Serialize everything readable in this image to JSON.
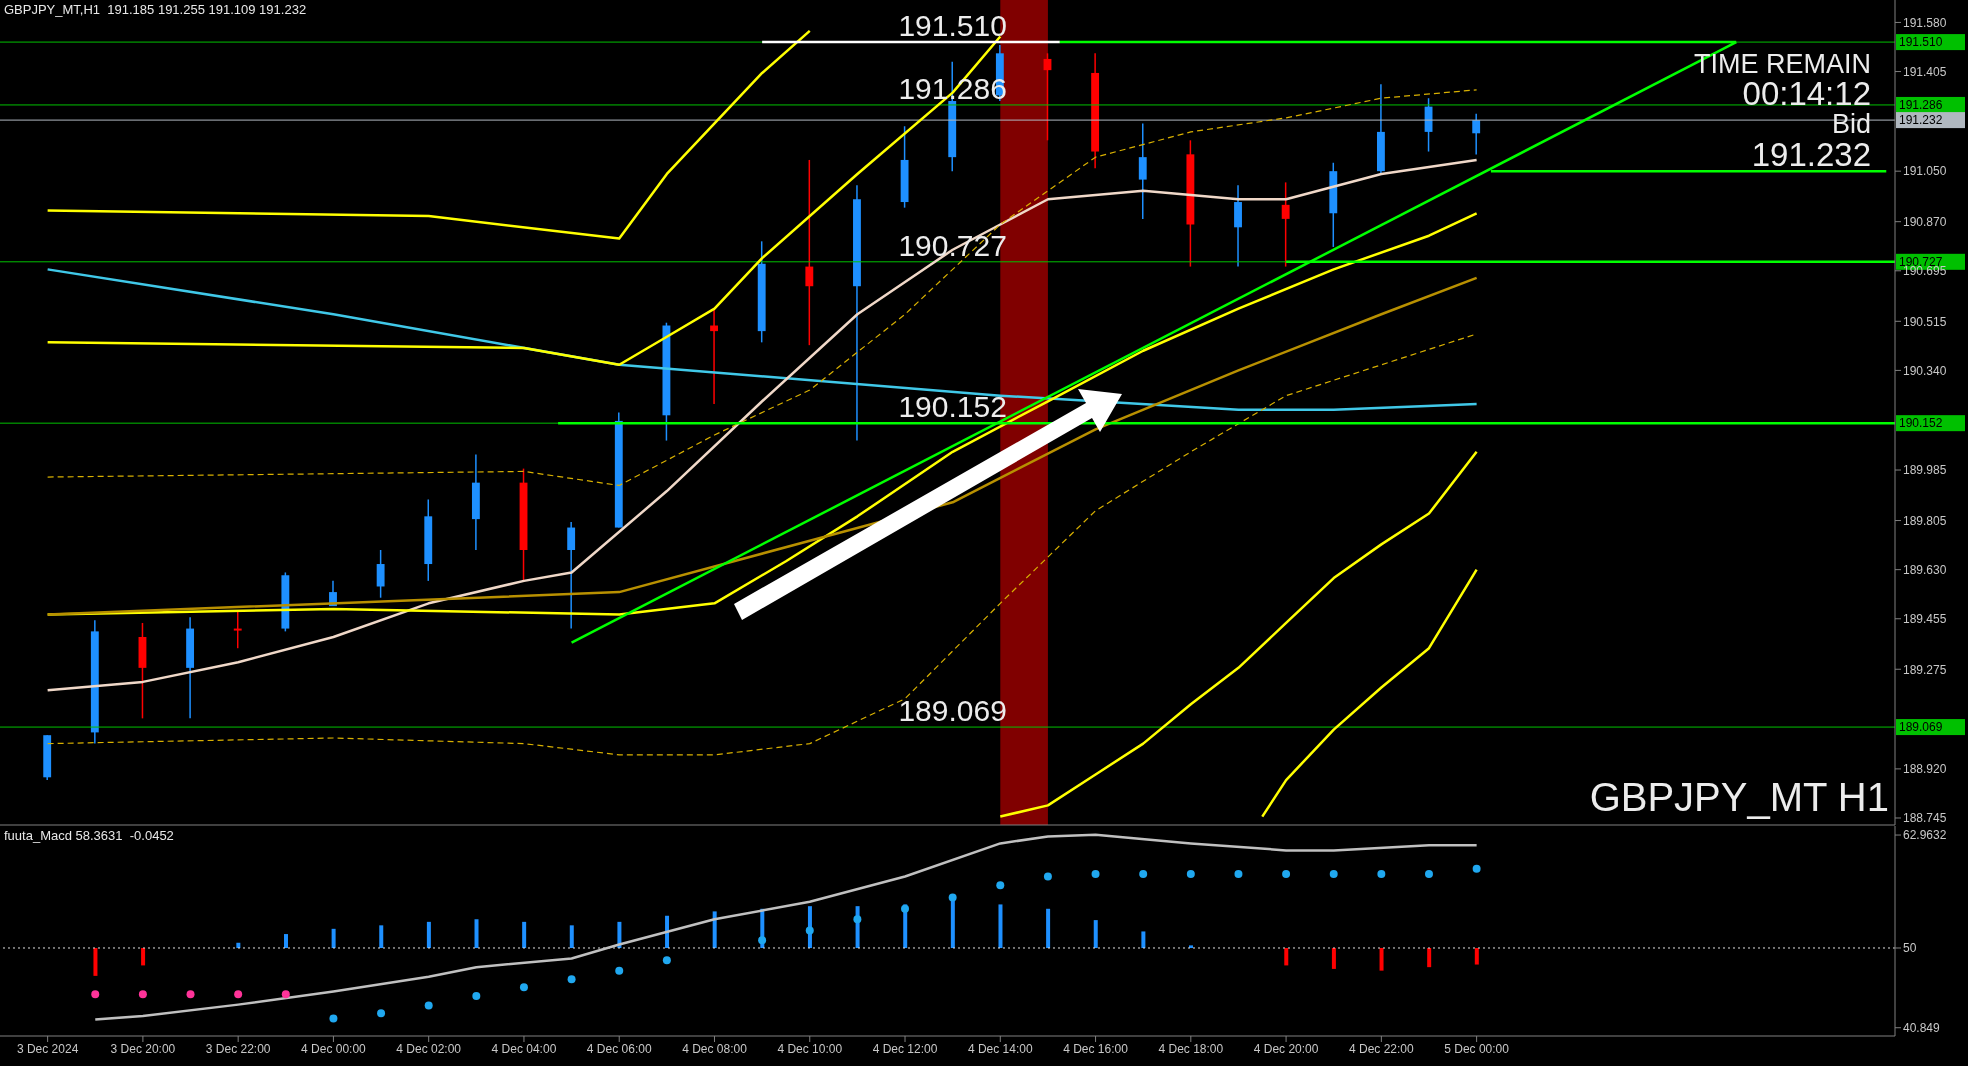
{
  "chart_data": [
    {
      "type": "candlestick",
      "title": "GBPJPY_MT,H1  191.185 191.255 191.109 191.232",
      "x": [
        "2024-12-03T18:00",
        "2024-12-03T19:00",
        "2024-12-03T20:00",
        "2024-12-03T21:00",
        "2024-12-03T22:00",
        "2024-12-03T23:00",
        "2024-12-04T00:00",
        "2024-12-04T01:00",
        "2024-12-04T02:00",
        "2024-12-04T03:00",
        "2024-12-04T04:00",
        "2024-12-04T05:00",
        "2024-12-04T06:00",
        "2024-12-04T07:00",
        "2024-12-04T08:00",
        "2024-12-04T09:00",
        "2024-12-04T10:00",
        "2024-12-04T11:00",
        "2024-12-04T12:00",
        "2024-12-04T13:00",
        "2024-12-04T14:00",
        "2024-12-04T15:00",
        "2024-12-04T16:00",
        "2024-12-04T17:00",
        "2024-12-04T18:00",
        "2024-12-04T19:00",
        "2024-12-04T20:00",
        "2024-12-04T21:00",
        "2024-12-04T22:00",
        "2024-12-04T23:00",
        "2024-12-05T00:00"
      ],
      "ohlc": [
        [
          188.89,
          189.04,
          188.88,
          189.04
        ],
        [
          189.05,
          189.45,
          189.01,
          189.41
        ],
        [
          189.39,
          189.44,
          189.1,
          189.28
        ],
        [
          189.28,
          189.46,
          189.1,
          189.42
        ],
        [
          189.42,
          189.48,
          189.35,
          189.42
        ],
        [
          189.42,
          189.62,
          189.41,
          189.61
        ],
        [
          189.5,
          189.59,
          189.5,
          189.55
        ],
        [
          189.57,
          189.7,
          189.53,
          189.65
        ],
        [
          189.65,
          189.88,
          189.59,
          189.82
        ],
        [
          189.81,
          190.04,
          189.7,
          189.94
        ],
        [
          189.94,
          189.99,
          189.59,
          189.7
        ],
        [
          189.7,
          189.8,
          189.42,
          189.78
        ],
        [
          189.78,
          190.19,
          189.78,
          190.16
        ],
        [
          190.18,
          190.51,
          190.09,
          190.5
        ],
        [
          190.5,
          190.56,
          190.22,
          190.48
        ],
        [
          190.48,
          190.8,
          190.44,
          190.72
        ],
        [
          190.71,
          191.09,
          190.43,
          190.64
        ],
        [
          190.64,
          191.0,
          190.09,
          190.95
        ],
        [
          190.94,
          191.21,
          190.92,
          191.09
        ],
        [
          191.1,
          191.44,
          191.05,
          191.3
        ],
        [
          191.32,
          191.5,
          191.3,
          191.47
        ],
        [
          191.45,
          191.47,
          191.16,
          191.41
        ],
        [
          191.4,
          191.47,
          191.06,
          191.12
        ],
        [
          191.02,
          191.22,
          190.88,
          191.1
        ],
        [
          191.11,
          191.16,
          190.71,
          190.86
        ],
        [
          190.85,
          191.0,
          190.71,
          190.94
        ],
        [
          190.93,
          191.01,
          190.71,
          190.88
        ],
        [
          190.9,
          191.08,
          190.78,
          191.05
        ],
        [
          191.05,
          191.36,
          191.04,
          191.19
        ],
        [
          191.19,
          191.31,
          191.12,
          191.28
        ],
        [
          191.185,
          191.255,
          191.109,
          191.232
        ]
      ],
      "colors": [
        "#1e90ff",
        "#1e90ff",
        "#ff0000",
        "#1e90ff",
        "#ff0000",
        "#1e90ff",
        "#1e90ff",
        "#1e90ff",
        "#1e90ff",
        "#1e90ff",
        "#ff0000",
        "#1e90ff",
        "#1e90ff",
        "#1e90ff",
        "#ff0000",
        "#1e90ff",
        "#ff0000",
        "#1e90ff",
        "#1e90ff",
        "#1e90ff",
        "#1e90ff",
        "#ff0000",
        "#ff0000",
        "#1e90ff",
        "#ff0000",
        "#1e90ff",
        "#ff0000",
        "#1e90ff",
        "#1e90ff",
        "#1e90ff",
        "#1e90ff"
      ],
      "series": [
        {
          "type": "line",
          "color": "#40c8e8",
          "x": [
            "2024-12-03T18:00",
            "2024-12-04T00:00",
            "2024-12-04T06:00",
            "2024-12-04T14:00",
            "2024-12-04T19:00",
            "2024-12-04T21:00",
            "2024-12-05T00:00"
          ],
          "values": [
            190.7,
            190.54,
            190.36,
            190.25,
            190.2,
            190.2,
            190.22
          ]
        },
        {
          "type": "line",
          "color": "#f0d8c8",
          "x": [
            "2024-12-03T18:00",
            "2024-12-03T20:00",
            "2024-12-03T22:00",
            "2024-12-04T00:00",
            "2024-12-04T02:00",
            "2024-12-04T04:00",
            "2024-12-04T05:00",
            "2024-12-04T07:00",
            "2024-12-04T09:00",
            "2024-12-04T11:00",
            "2024-12-04T13:00",
            "2024-12-04T14:00",
            "2024-12-04T15:00",
            "2024-12-04T17:00",
            "2024-12-04T19:00",
            "2024-12-04T20:00",
            "2024-12-04T22:00",
            "2024-12-05T00:00"
          ],
          "values": [
            189.2,
            189.23,
            189.3,
            189.39,
            189.51,
            189.59,
            189.62,
            189.91,
            190.23,
            190.54,
            190.77,
            190.86,
            190.95,
            190.98,
            190.95,
            190.95,
            191.04,
            191.09
          ]
        },
        {
          "type": "line",
          "color": "#ffff00",
          "x": [
            "2024-12-03T18:00",
            "2024-12-04T02:00",
            "2024-12-04T06:00",
            "2024-12-04T07:00",
            "2024-12-04T09:00",
            "2024-12-04T10:00"
          ],
          "values": [
            190.91,
            190.89,
            190.81,
            191.04,
            191.4,
            191.55
          ]
        },
        {
          "type": "line",
          "color": "#ffff00",
          "x": [
            "2024-12-03T18:00",
            "2024-12-04T04:00",
            "2024-12-04T06:00",
            "2024-12-04T07:00",
            "2024-12-04T08:00",
            "2024-12-04T09:00",
            "2024-12-04T11:00",
            "2024-12-04T13:00",
            "2024-12-04T14:00"
          ],
          "values": [
            190.44,
            190.42,
            190.36,
            190.46,
            190.56,
            190.74,
            191.04,
            191.33,
            191.53
          ]
        },
        {
          "type": "line",
          "color": "#ffff00",
          "x": [
            "2024-12-03T18:00",
            "2024-12-04T00:00",
            "2024-12-04T06:00",
            "2024-12-04T08:00",
            "2024-12-04T09:30",
            "2024-12-04T11:00",
            "2024-12-04T13:00",
            "2024-12-04T15:00",
            "2024-12-04T17:00",
            "2024-12-04T19:00",
            "2024-12-04T21:00",
            "2024-12-04T23:00",
            "2024-12-05T00:00"
          ],
          "values": [
            189.47,
            189.49,
            189.47,
            189.51,
            189.66,
            189.82,
            190.05,
            190.23,
            190.41,
            190.56,
            190.7,
            190.82,
            190.9
          ]
        },
        {
          "type": "line",
          "color": "#ffff00",
          "x": [
            "2024-12-04T14:00",
            "2024-12-04T15:00",
            "2024-12-04T16:00",
            "2024-12-04T17:00",
            "2024-12-04T18:00",
            "2024-12-04T19:00",
            "2024-12-04T20:00",
            "2024-12-04T21:00",
            "2024-12-04T22:00",
            "2024-12-04T23:00",
            "2024-12-05T00:00"
          ],
          "values": [
            188.75,
            188.79,
            188.9,
            189.01,
            189.15,
            189.28,
            189.44,
            189.6,
            189.72,
            189.83,
            190.05
          ]
        },
        {
          "type": "line",
          "color": "#ffff00",
          "x": [
            "2024-12-04T19:30",
            "2024-12-04T20:00",
            "2024-12-04T21:00",
            "2024-12-04T22:00",
            "2024-12-04T23:00",
            "2024-12-05T00:00"
          ],
          "values": [
            188.75,
            188.88,
            189.06,
            189.21,
            189.35,
            189.63
          ]
        },
        {
          "type": "line",
          "color": "#d8b000",
          "line_style": "dashed",
          "x": [
            "2024-12-03T18:00",
            "2024-12-04T04:00",
            "2024-12-04T06:00",
            "2024-12-04T08:00",
            "2024-12-04T10:00",
            "2024-12-04T12:00",
            "2024-12-04T14:00",
            "2024-12-04T16:00",
            "2024-12-04T18:00",
            "2024-12-04T20:00",
            "2024-12-04T22:00",
            "2024-12-05T00:00"
          ],
          "values": [
            189.96,
            189.98,
            189.93,
            190.11,
            190.27,
            190.54,
            190.86,
            191.1,
            191.19,
            191.24,
            191.31,
            191.34
          ]
        },
        {
          "type": "line",
          "color": "#d8b000",
          "line_style": "dashed",
          "x": [
            "2024-12-03T18:00",
            "2024-12-04T00:00",
            "2024-12-04T04:00",
            "2024-12-04T06:00",
            "2024-12-04T08:00",
            "2024-12-04T10:00",
            "2024-12-04T12:00",
            "2024-12-04T14:00",
            "2024-12-04T16:00",
            "2024-12-04T18:00",
            "2024-12-04T20:00",
            "2024-12-04T22:00",
            "2024-12-05T00:00"
          ],
          "values": [
            189.01,
            189.03,
            189.01,
            188.97,
            188.97,
            189.01,
            189.17,
            189.51,
            189.84,
            190.05,
            190.25,
            190.36,
            190.47
          ]
        },
        {
          "type": "line",
          "color": "#b89000",
          "x": [
            "2024-12-03T18:00",
            "2024-12-04T06:00",
            "2024-12-04T13:00",
            "2024-12-04T16:00",
            "2024-12-04T19:00",
            "2024-12-04T22:00",
            "2024-12-05T00:00"
          ],
          "values": [
            189.47,
            189.55,
            189.87,
            190.13,
            190.34,
            190.54,
            190.67
          ]
        },
        {
          "type": "line",
          "color": "#ffffff",
          "x": [
            "2024-12-04T09:00",
            "2024-12-04T15:15"
          ],
          "values": [
            191.51,
            191.51
          ]
        },
        {
          "type": "line",
          "color": "#00ff00",
          "x": [
            "2024-12-04T15:15",
            "2024-12-05T05:27"
          ],
          "values": [
            191.51,
            191.51
          ]
        },
        {
          "type": "line",
          "color": "#00ff00",
          "x": [
            "2024-12-04T05:00",
            "2024-12-05T05:27"
          ],
          "values": [
            189.37,
            191.51
          ]
        },
        {
          "type": "line",
          "color": "#00ff00",
          "x": [
            "2024-12-05T00:18",
            "2024-12-05T08:36"
          ],
          "values": [
            191.05,
            191.05
          ]
        },
        {
          "type": "line",
          "color": "#00ff00",
          "x": [
            "2024-12-04T20:00",
            "2024-12-05T08:47"
          ],
          "values": [
            190.727,
            190.727
          ]
        },
        {
          "type": "line",
          "color": "#00ff00",
          "x": [
            "2024-12-04T04:43",
            "2024-12-05T08:47"
          ],
          "values": [
            190.152,
            190.152
          ]
        }
      ],
      "ref_lines": [
        {
          "axis": "y",
          "value": 191.51,
          "label": "191.510",
          "color": "#00c000"
        },
        {
          "axis": "y",
          "value": 191.286,
          "label": "191.286",
          "color": "#00c000"
        },
        {
          "axis": "y",
          "value": 191.232,
          "label": "191.232",
          "color": "#b0b8c0"
        },
        {
          "axis": "y",
          "value": 190.727,
          "label": "190.727",
          "color": "#00c000"
        },
        {
          "axis": "y",
          "value": 190.152,
          "label": "190.152",
          "color": "#00c000"
        },
        {
          "axis": "y",
          "value": 189.069,
          "label": "189.069",
          "color": "#00c000"
        }
      ],
      "bands": [
        {
          "axis": "x",
          "from": "2024-12-04T14:00",
          "to": "2024-12-04T15:00",
          "color": "#800000"
        }
      ],
      "annotations": [
        {
          "text": "191.510",
          "x": "2024-12-04T13:00",
          "y": 191.51
        },
        {
          "text": "191.286",
          "x": "2024-12-04T13:00",
          "y": 191.286
        },
        {
          "text": "190.727",
          "x": "2024-12-04T13:00",
          "y": 190.727
        },
        {
          "text": "190.152",
          "x": "2024-12-04T13:00",
          "y": 190.152
        },
        {
          "text": "189.069",
          "x": "2024-12-04T13:00",
          "y": 189.069
        },
        "TIME REMAIN",
        "00:14:12",
        "Bid",
        "191.232",
        "GBPJPY_MT H1"
      ],
      "xlim": [
        "2024-12-03T17:00",
        "2024-12-05T08:47"
      ],
      "ylim": [
        188.72,
        191.66
      ],
      "yticks": [
        {
          "value": 191.58,
          "label": "191.580"
        },
        {
          "value": 191.405,
          "label": "191.405"
        },
        {
          "value": 191.05,
          "label": "191.050"
        },
        {
          "value": 190.87,
          "label": "190.870"
        },
        {
          "value": 190.695,
          "label": "190.695"
        },
        {
          "value": 190.515,
          "label": "190.515"
        },
        {
          "value": 190.34,
          "label": "190.340"
        },
        {
          "value": 189.985,
          "label": "189.985"
        },
        {
          "value": 189.805,
          "label": "189.805"
        },
        {
          "value": 189.63,
          "label": "189.630"
        },
        {
          "value": 189.455,
          "label": "189.455"
        },
        {
          "value": 189.275,
          "label": "189.275"
        },
        {
          "value": 188.92,
          "label": "188.920"
        },
        {
          "value": 188.745,
          "label": "188.745"
        }
      ],
      "tick_labels": "y"
    },
    {
      "type": "bar",
      "title": "fuuta_Macd 58.3631  -0.0452",
      "x": [
        "2024-12-03T19:00",
        "2024-12-03T20:00",
        "2024-12-03T21:00",
        "2024-12-03T22:00",
        "2024-12-03T23:00",
        "2024-12-04T00:00",
        "2024-12-04T01:00",
        "2024-12-04T02:00",
        "2024-12-04T03:00",
        "2024-12-04T04:00",
        "2024-12-04T05:00",
        "2024-12-04T06:00",
        "2024-12-04T07:00",
        "2024-12-04T08:00",
        "2024-12-04T09:00",
        "2024-12-04T10:00",
        "2024-12-04T11:00",
        "2024-12-04T12:00",
        "2024-12-04T13:00",
        "2024-12-04T14:00",
        "2024-12-04T15:00",
        "2024-12-04T16:00",
        "2024-12-04T17:00",
        "2024-12-04T18:00",
        "2024-12-04T19:00",
        "2024-12-04T20:00",
        "2024-12-04T21:00",
        "2024-12-04T22:00",
        "2024-12-04T23:00",
        "2024-12-05T00:00"
      ],
      "base": [
        50,
        50,
        null,
        50,
        50,
        50,
        50,
        50,
        50,
        50,
        50,
        50,
        50,
        50,
        50,
        50,
        50,
        50,
        50,
        50,
        50,
        50,
        50,
        50,
        null,
        50,
        50,
        50,
        50,
        50
      ],
      "values": [
        -3.2,
        -2.0,
        null,
        0.6,
        1.6,
        2.2,
        2.6,
        3.0,
        3.3,
        3.0,
        2.6,
        3.0,
        3.7,
        4.2,
        4.5,
        4.8,
        4.8,
        5.0,
        5.5,
        5.0,
        4.5,
        3.2,
        1.9,
        0.3,
        null,
        -2.0,
        -2.4,
        -2.6,
        -2.2,
        -1.9
      ],
      "colors": [
        "#ff0000",
        "#ff0000",
        null,
        "#1e90ff",
        "#1e90ff",
        "#1e90ff",
        "#1e90ff",
        "#1e90ff",
        "#1e90ff",
        "#1e90ff",
        "#1e90ff",
        "#1e90ff",
        "#1e90ff",
        "#1e90ff",
        "#1e90ff",
        "#1e90ff",
        "#1e90ff",
        "#1e90ff",
        "#1e90ff",
        "#1e90ff",
        "#1e90ff",
        "#1e90ff",
        "#1e90ff",
        "#1e90ff",
        null,
        "#ff0000",
        "#ff0000",
        "#ff0000",
        "#ff0000",
        "#ff0000"
      ],
      "series": [
        {
          "type": "scatter",
          "color": "#ff3399",
          "x": [
            "2024-12-03T19:00",
            "2024-12-03T20:00",
            "2024-12-03T21:00",
            "2024-12-03T22:00",
            "2024-12-03T23:00"
          ],
          "values": [
            44.7,
            44.7,
            44.7,
            44.7,
            44.7
          ]
        },
        {
          "type": "scatter",
          "color": "#20a8f0",
          "x": [
            "2024-12-04T00:00",
            "2024-12-04T01:00",
            "2024-12-04T02:00",
            "2024-12-04T03:00",
            "2024-12-04T04:00",
            "2024-12-04T05:00",
            "2024-12-04T06:00",
            "2024-12-04T07:00",
            "2024-12-04T09:00",
            "2024-12-04T10:00",
            "2024-12-04T11:00",
            "2024-12-04T12:00",
            "2024-12-04T13:00",
            "2024-12-04T14:00",
            "2024-12-04T15:00",
            "2024-12-04T16:00",
            "2024-12-04T17:00",
            "2024-12-04T18:00",
            "2024-12-04T19:00",
            "2024-12-04T20:00",
            "2024-12-04T21:00",
            "2024-12-04T22:00",
            "2024-12-04T23:00",
            "2024-12-05T00:00"
          ],
          "values": [
            41.9,
            42.5,
            43.4,
            44.5,
            45.5,
            46.4,
            47.4,
            48.6,
            50.9,
            52.0,
            53.3,
            54.5,
            55.8,
            57.2,
            58.2,
            58.5,
            58.5,
            58.5,
            58.5,
            58.5,
            58.5,
            58.5,
            58.5,
            59.1
          ]
        },
        {
          "type": "line",
          "color": "#c0c0c0",
          "x": [
            "2024-12-03T19:00",
            "2024-12-03T20:00",
            "2024-12-03T22:00",
            "2024-12-04T00:00",
            "2024-12-04T02:00",
            "2024-12-04T03:00",
            "2024-12-04T05:00",
            "2024-12-04T06:00",
            "2024-12-04T08:00",
            "2024-12-04T10:00",
            "2024-12-04T12:00",
            "2024-12-04T14:00",
            "2024-12-04T15:00",
            "2024-12-04T16:00",
            "2024-12-04T18:00",
            "2024-12-04T20:00",
            "2024-12-04T21:00",
            "2024-12-04T23:00",
            "2024-12-05T00:00"
          ],
          "values": [
            41.8,
            42.2,
            43.5,
            45.0,
            46.7,
            47.8,
            48.8,
            50.4,
            53.3,
            55.3,
            58.2,
            62.0,
            62.8,
            63.0,
            62.0,
            61.2,
            61.2,
            61.8,
            61.8
          ]
        }
      ],
      "ref_lines": [
        {
          "axis": "y",
          "value": 50,
          "color": "#e0e0e0",
          "line_style": "dotted"
        }
      ],
      "xlim": [
        "2024-12-03T17:00",
        "2024-12-05T08:47"
      ],
      "xticks": [
        {
          "value": "2024-12-03T18:00",
          "label": "3 Dec 2024"
        },
        {
          "value": "2024-12-03T20:00",
          "label": "3 Dec 20:00"
        },
        {
          "value": "2024-12-03T22:00",
          "label": "3 Dec 22:00"
        },
        {
          "value": "2024-12-04T00:00",
          "label": "4 Dec 00:00"
        },
        {
          "value": "2024-12-04T02:00",
          "label": "4 Dec 02:00"
        },
        {
          "value": "2024-12-04T04:00",
          "label": "4 Dec 04:00"
        },
        {
          "value": "2024-12-04T06:00",
          "label": "4 Dec 06:00"
        },
        {
          "value": "2024-12-04T08:00",
          "label": "4 Dec 08:00"
        },
        {
          "value": "2024-12-04T10:00",
          "label": "4 Dec 10:00"
        },
        {
          "value": "2024-12-04T12:00",
          "label": "4 Dec 12:00"
        },
        {
          "value": "2024-12-04T14:00",
          "label": "4 Dec 14:00"
        },
        {
          "value": "2024-12-04T16:00",
          "label": "4 Dec 16:00"
        },
        {
          "value": "2024-12-04T18:00",
          "label": "4 Dec 18:00"
        },
        {
          "value": "2024-12-04T20:00",
          "label": "4 Dec 20:00"
        },
        {
          "value": "2024-12-04T22:00",
          "label": "4 Dec 22:00"
        },
        {
          "value": "2024-12-05T00:00",
          "label": "5 Dec 00:00"
        }
      ],
      "ylim": [
        39.9,
        64.0
      ],
      "yticks": [
        62.9632,
        50,
        40.849
      ]
    }
  ]
}
